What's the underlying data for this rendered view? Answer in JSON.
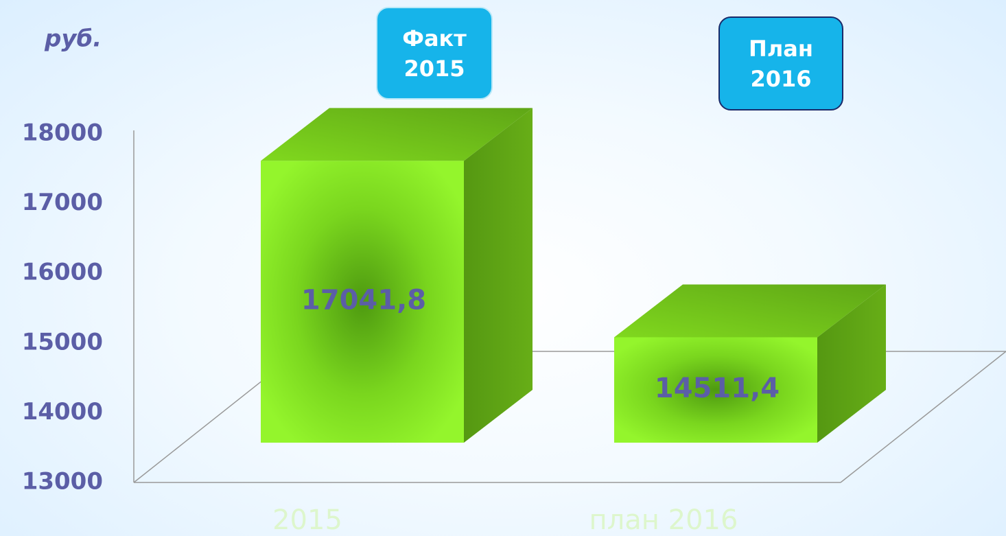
{
  "chart_data": {
    "type": "bar3d",
    "y_label": "руб.",
    "categories": [
      "2015",
      "план 2016"
    ],
    "values": [
      17041.8,
      14511.4
    ],
    "value_labels": [
      "17041,8",
      "14511,4"
    ],
    "color": "#8ef22a",
    "ylim": [
      13000,
      18000
    ],
    "yticks": [
      13000,
      14000,
      15000,
      16000,
      17000,
      18000
    ],
    "annotations": [
      "Факт 2015",
      "План 2016"
    ]
  }
}
